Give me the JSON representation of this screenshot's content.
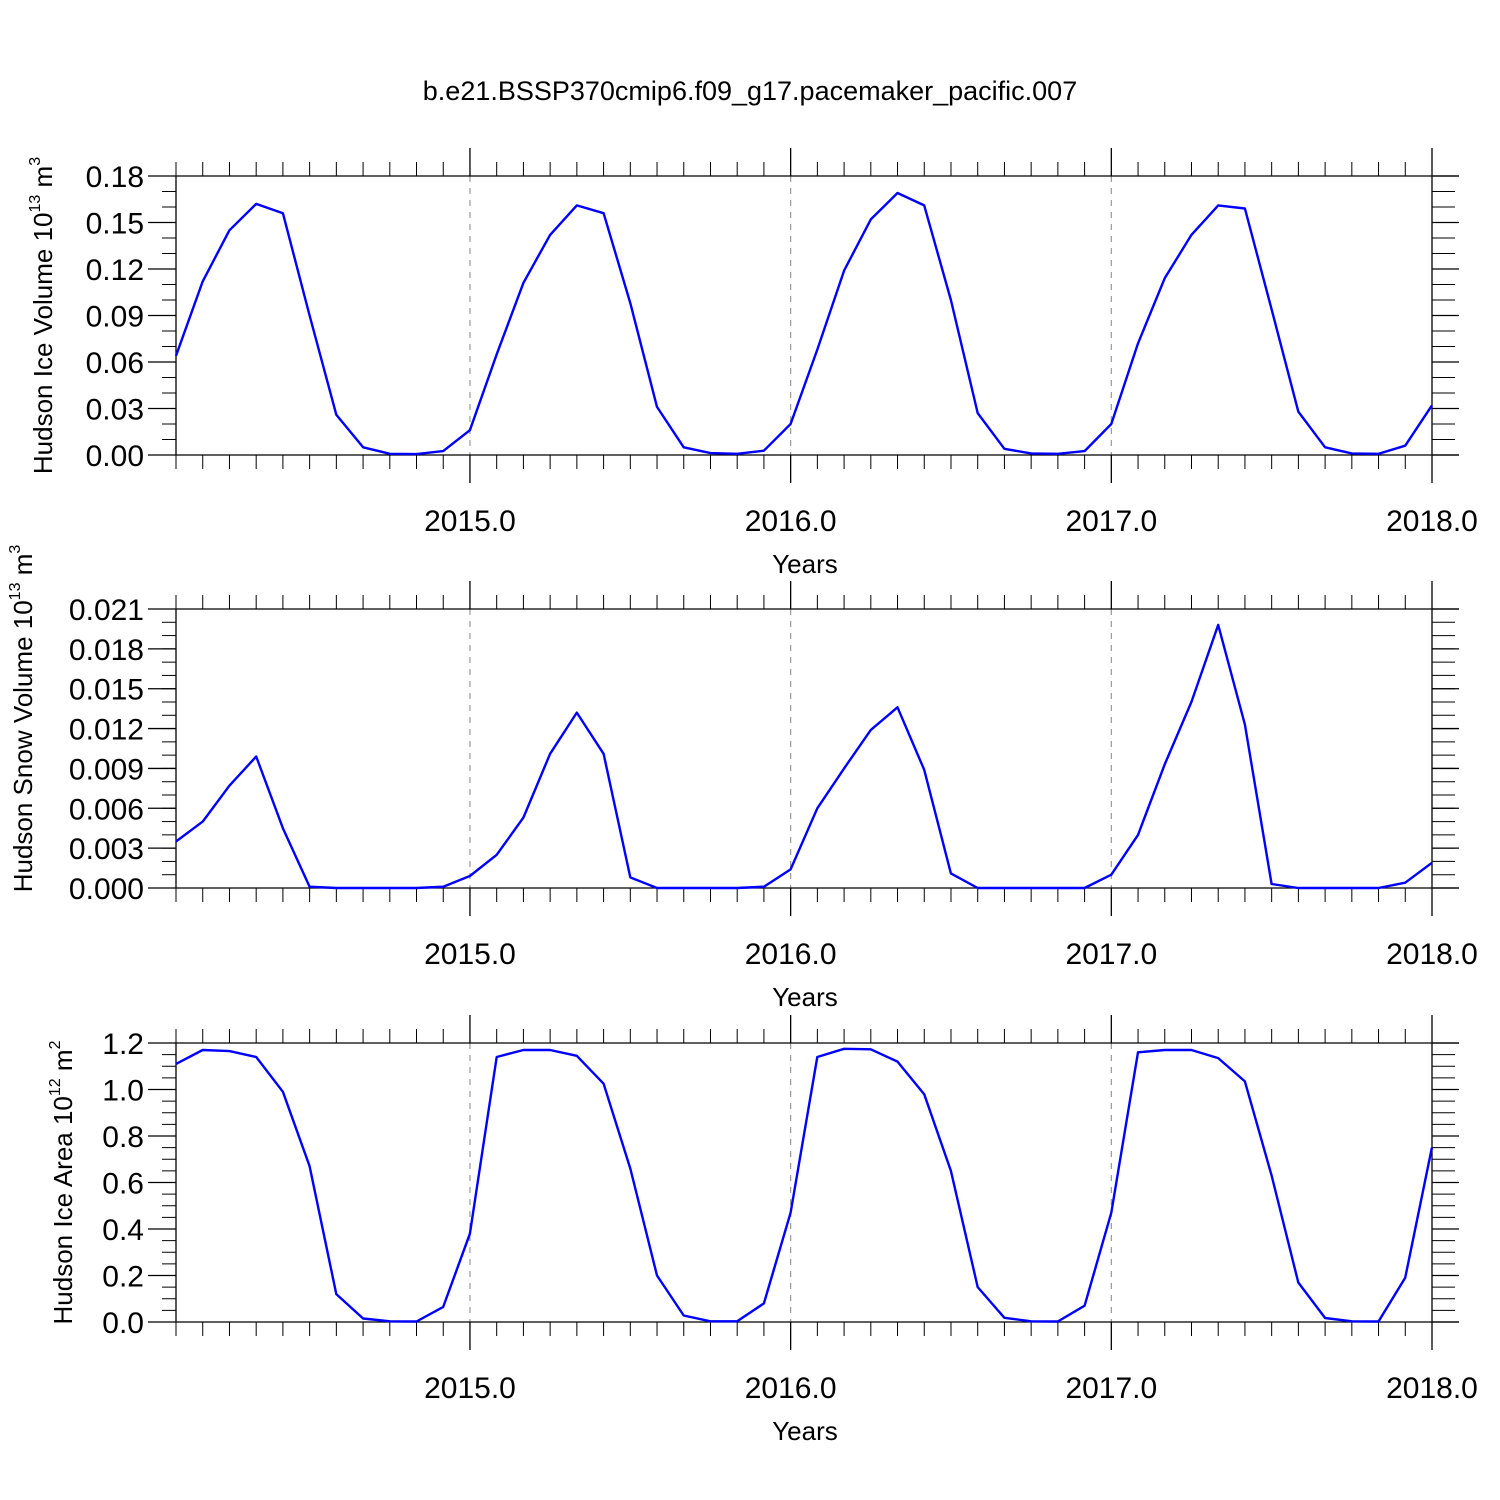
{
  "title": "b.e21.BSSP370cmip6.f09_g17.pacemaker_pacific.007",
  "colors": {
    "series": "#0000ff",
    "axis": "#000000",
    "grid": "#999999"
  },
  "chart_data": [
    {
      "type": "line",
      "ylabel": "Hudson Ice Volume 10",
      "ylabel_exp": "13",
      "ylabel_unit": "m",
      "ylabel_unit_exp": "3",
      "xlabel": "Years",
      "xlim": [
        2014.0833,
        2018.0
      ],
      "ylim": [
        0,
        0.18
      ],
      "yticks": [
        0.0,
        0.03,
        0.06,
        0.09,
        0.12,
        0.15,
        0.18
      ],
      "ytick_labels": [
        "0.00",
        "0.03",
        "0.06",
        "0.09",
        "0.12",
        "0.15",
        "0.18"
      ],
      "ytick_minor_step": 0.01,
      "xticks": [
        2015.0,
        2016.0,
        2017.0,
        2018.0
      ],
      "xtick_labels": [
        "2015.0",
        "2016.0",
        "2017.0",
        "2018.0"
      ],
      "grid_x": true,
      "series": [
        {
          "x_start": 2014.0833,
          "x_step": 0.08333,
          "values": [
            0.064,
            0.112,
            0.145,
            0.162,
            0.156,
            0.09,
            0.026,
            0.005,
            0.0008,
            0.0006,
            0.0025,
            0.016,
            0.065,
            0.111,
            0.142,
            0.161,
            0.156,
            0.098,
            0.031,
            0.005,
            0.0012,
            0.0008,
            0.0028,
            0.02,
            0.068,
            0.119,
            0.152,
            0.169,
            0.161,
            0.1,
            0.027,
            0.004,
            0.001,
            0.0008,
            0.0025,
            0.02,
            0.072,
            0.114,
            0.142,
            0.161,
            0.159,
            0.094,
            0.028,
            0.005,
            0.001,
            0.0008,
            0.006,
            0.032
          ]
        }
      ]
    },
    {
      "type": "line",
      "ylabel": "Hudson Snow Volume 10",
      "ylabel_exp": "13",
      "ylabel_unit": "m",
      "ylabel_unit_exp": "3",
      "xlabel": "Years",
      "xlim": [
        2014.0833,
        2018.0
      ],
      "ylim": [
        0,
        0.021
      ],
      "yticks": [
        0.0,
        0.003,
        0.006,
        0.009,
        0.012,
        0.015,
        0.018,
        0.021
      ],
      "ytick_labels": [
        "0.000",
        "0.003",
        "0.006",
        "0.009",
        "0.012",
        "0.015",
        "0.018",
        "0.021"
      ],
      "ytick_minor_step": 0.001,
      "xticks": [
        2015.0,
        2016.0,
        2017.0,
        2018.0
      ],
      "xtick_labels": [
        "2015.0",
        "2016.0",
        "2017.0",
        "2018.0"
      ],
      "grid_x": true,
      "series": [
        {
          "x_start": 2014.0833,
          "x_step": 0.08333,
          "values": [
            0.0035,
            0.005,
            0.0077,
            0.0099,
            0.0045,
            0.0001,
            0.0,
            0.0,
            0.0,
            0.0,
            0.0001,
            0.0009,
            0.0025,
            0.0053,
            0.0101,
            0.0132,
            0.0101,
            0.0008,
            0.0,
            0.0,
            0.0,
            0.0,
            0.0001,
            0.0014,
            0.006,
            0.009,
            0.0119,
            0.0136,
            0.0089,
            0.0011,
            0.0,
            0.0,
            0.0,
            0.0,
            0.0,
            0.001,
            0.004,
            0.0093,
            0.014,
            0.0198,
            0.0123,
            0.0003,
            0.0,
            0.0,
            0.0,
            0.0,
            0.0004,
            0.0019
          ]
        }
      ]
    },
    {
      "type": "line",
      "ylabel": "Hudson Ice Area 10",
      "ylabel_exp": "12",
      "ylabel_unit": "m",
      "ylabel_unit_exp": "2",
      "xlabel": "Years",
      "xlim": [
        2014.0833,
        2018.0
      ],
      "ylim": [
        0,
        1.2
      ],
      "yticks": [
        0.0,
        0.2,
        0.4,
        0.6,
        0.8,
        1.0,
        1.2
      ],
      "ytick_labels": [
        "0.0",
        "0.2",
        "0.4",
        "0.6",
        "0.8",
        "1.0",
        "1.2"
      ],
      "ytick_minor_step": 0.05,
      "xticks": [
        2015.0,
        2016.0,
        2017.0,
        2018.0
      ],
      "xtick_labels": [
        "2015.0",
        "2016.0",
        "2017.0",
        "2018.0"
      ],
      "grid_x": true,
      "series": [
        {
          "x_start": 2014.0833,
          "x_step": 0.08333,
          "values": [
            1.11,
            1.17,
            1.165,
            1.14,
            0.99,
            0.67,
            0.12,
            0.015,
            0.003,
            0.002,
            0.065,
            0.38,
            1.14,
            1.17,
            1.17,
            1.145,
            1.025,
            0.66,
            0.2,
            0.028,
            0.003,
            0.003,
            0.08,
            0.47,
            1.14,
            1.175,
            1.173,
            1.12,
            0.98,
            0.65,
            0.15,
            0.018,
            0.003,
            0.002,
            0.07,
            0.47,
            1.16,
            1.17,
            1.17,
            1.135,
            1.035,
            0.63,
            0.17,
            0.017,
            0.003,
            0.002,
            0.19,
            0.75
          ]
        }
      ]
    }
  ]
}
